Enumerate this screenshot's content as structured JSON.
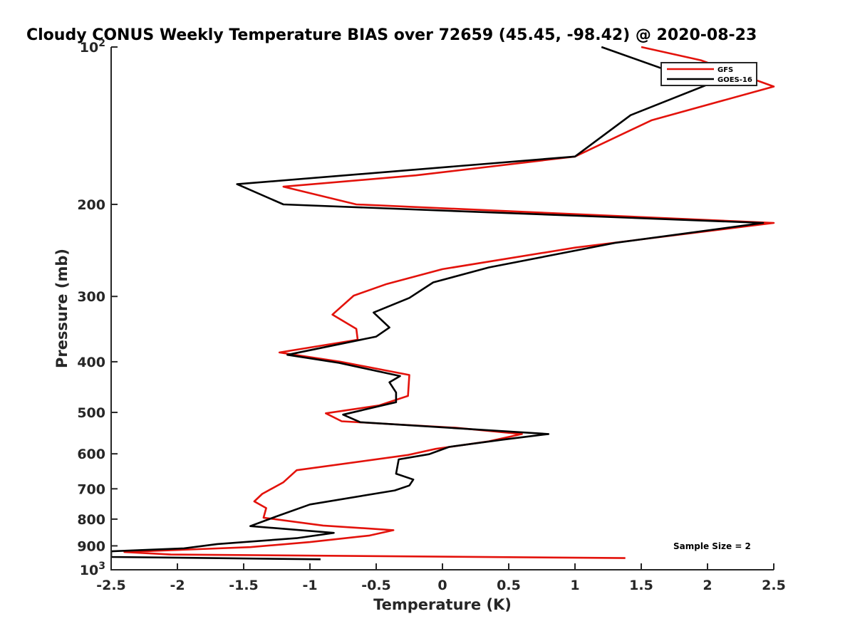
{
  "chart_data": {
    "type": "line",
    "title": "Cloudy CONUS Weekly Temperature BIAS over 72659 (45.45, -98.42) @ 2020-08-23",
    "xlabel": "Temperature (K)",
    "ylabel": "Pressure (mb)",
    "xlim": [
      -2.5,
      2.5
    ],
    "ylim": [
      100,
      1000
    ],
    "y_scale": "log",
    "y_reversed": true,
    "grid": false,
    "legend_position": "top-right",
    "xticks": [
      -2.5,
      -2,
      -1.5,
      -1,
      -0.5,
      0,
      0.5,
      1,
      1.5,
      2,
      2.5
    ],
    "xtick_labels": [
      "-2.5",
      "-2",
      "-1.5",
      "-1",
      "-0.5",
      "0",
      "0.5",
      "1",
      "1.5",
      "2",
      "2.5"
    ],
    "yticks": [
      100,
      200,
      300,
      400,
      500,
      600,
      700,
      800,
      900,
      1000
    ],
    "ytick_labels": [
      {
        "base": "10",
        "exp": "2"
      },
      {
        "base": "200",
        "exp": ""
      },
      {
        "base": "300",
        "exp": ""
      },
      {
        "base": "400",
        "exp": ""
      },
      {
        "base": "500",
        "exp": ""
      },
      {
        "base": "600",
        "exp": ""
      },
      {
        "base": "700",
        "exp": ""
      },
      {
        "base": "800",
        "exp": ""
      },
      {
        "base": "900",
        "exp": ""
      },
      {
        "base": "10",
        "exp": "3"
      }
    ],
    "annotation": "Sample Size = 2",
    "series": [
      {
        "name": "GFS",
        "color": "#e3120b",
        "points": [
          [
            1.5,
            100
          ],
          [
            1.95,
            106
          ],
          [
            2.5,
            119
          ],
          [
            1.58,
            138
          ],
          [
            1.0,
            162
          ],
          [
            -0.2,
            176
          ],
          [
            -1.2,
            185
          ],
          [
            -0.65,
            200
          ],
          [
            2.5,
            217
          ],
          [
            1.0,
            242
          ],
          [
            0.0,
            266
          ],
          [
            -0.42,
            284
          ],
          [
            -0.67,
            299
          ],
          [
            -0.83,
            325
          ],
          [
            -0.65,
            346
          ],
          [
            -0.64,
            363
          ],
          [
            -1.23,
            384
          ],
          [
            -0.77,
            400
          ],
          [
            -0.25,
            424
          ],
          [
            -0.26,
            465
          ],
          [
            -0.48,
            485
          ],
          [
            -0.88,
            502
          ],
          [
            -0.76,
            520
          ],
          [
            0.1,
            535
          ],
          [
            0.6,
            550
          ],
          [
            0.35,
            568
          ],
          [
            -0.05,
            587
          ],
          [
            -0.26,
            603
          ],
          [
            -1.1,
            645
          ],
          [
            -1.2,
            680
          ],
          [
            -1.36,
            716
          ],
          [
            -1.42,
            740
          ],
          [
            -1.33,
            762
          ],
          [
            -1.35,
            795
          ],
          [
            -0.9,
            823
          ],
          [
            -0.37,
            840
          ],
          [
            -0.55,
            860
          ],
          [
            -1.0,
            885
          ],
          [
            -1.45,
            905
          ],
          [
            -2.4,
            925
          ],
          [
            -2.05,
            935
          ],
          [
            1.38,
            950
          ]
        ]
      },
      {
        "name": "GOES-16",
        "color": "#000000",
        "points": [
          [
            1.2,
            100
          ],
          [
            2.0,
            118
          ],
          [
            1.42,
            135
          ],
          [
            1.0,
            162
          ],
          [
            -1.55,
            183
          ],
          [
            -1.2,
            200
          ],
          [
            2.42,
            217
          ],
          [
            1.3,
            237
          ],
          [
            0.35,
            264
          ],
          [
            -0.07,
            282
          ],
          [
            -0.25,
            302
          ],
          [
            -0.52,
            322
          ],
          [
            -0.4,
            344
          ],
          [
            -0.5,
            358
          ],
          [
            -1.17,
            388
          ],
          [
            -0.78,
            402
          ],
          [
            -0.32,
            426
          ],
          [
            -0.4,
            438
          ],
          [
            -0.35,
            458
          ],
          [
            -0.35,
            478
          ],
          [
            -0.75,
            505
          ],
          [
            -0.62,
            522
          ],
          [
            0.8,
            550
          ],
          [
            0.45,
            564
          ],
          [
            0.05,
            582
          ],
          [
            -0.1,
            601
          ],
          [
            -0.33,
            615
          ],
          [
            -0.35,
            655
          ],
          [
            -0.22,
            672
          ],
          [
            -0.25,
            690
          ],
          [
            -0.36,
            705
          ],
          [
            -1.0,
            750
          ],
          [
            -1.25,
            790
          ],
          [
            -1.45,
            825
          ],
          [
            -0.82,
            850
          ],
          [
            -1.1,
            870
          ],
          [
            -1.7,
            893
          ],
          [
            -1.95,
            910
          ],
          [
            -2.5,
            922
          ],
          [
            -2.5,
            945
          ],
          [
            -0.92,
            955
          ]
        ]
      }
    ]
  }
}
